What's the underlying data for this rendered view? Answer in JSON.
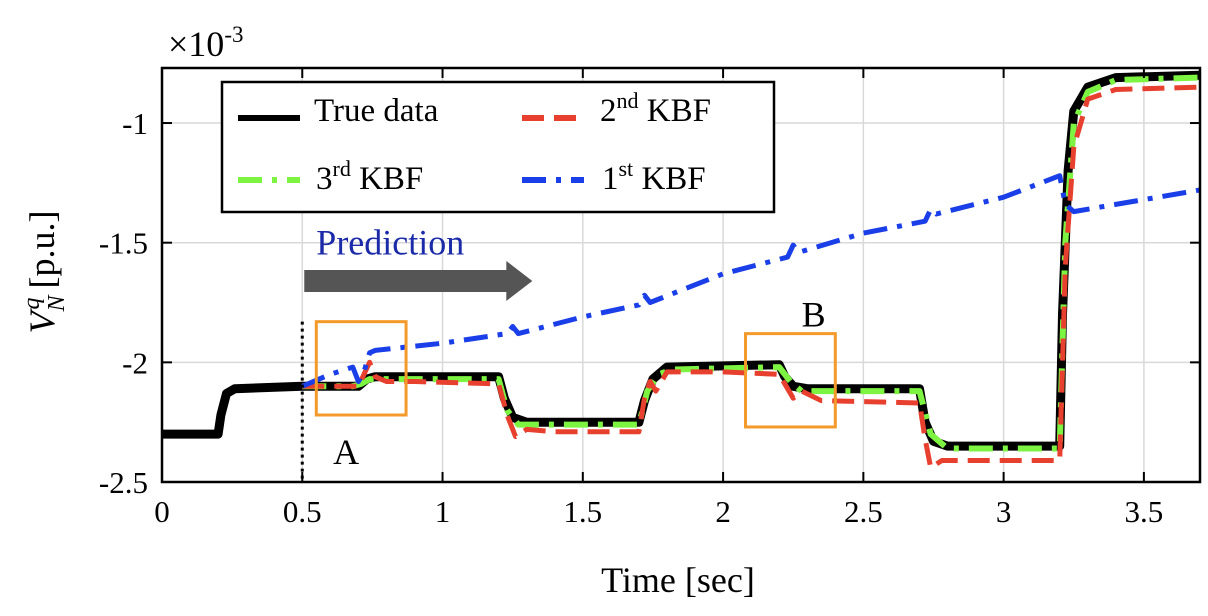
{
  "chart_data": {
    "type": "line",
    "xlabel": "Time [sec]",
    "ylabel": {
      "main": "V",
      "sup": "q",
      "sub": "N",
      "unit": " [p.u.]"
    },
    "y_multiplier": {
      "base": "×10",
      "exp": "-3"
    },
    "xlim": [
      0,
      3.7
    ],
    "ylim": [
      -2.5,
      -0.77
    ],
    "grid": true,
    "legend_position": "top-left",
    "xticks": [
      0,
      0.5,
      1,
      1.5,
      2,
      2.5,
      3,
      3.5
    ],
    "xtick_labels": [
      "0",
      "0.5",
      "1",
      "1.5",
      "2",
      "2.5",
      "3",
      "3.5"
    ],
    "yticks": [
      -2.5,
      -2,
      -1.5,
      -1
    ],
    "ytick_labels": [
      "-2.5",
      "-2",
      "-1.5",
      "-1"
    ],
    "series": [
      {
        "key": "true",
        "name": {
          "base": "True data",
          "sup": "",
          "suffix": ""
        },
        "color": "#000000",
        "style": "solid",
        "points": [
          [
            0,
            -2.3
          ],
          [
            0.2,
            -2.3
          ],
          [
            0.21,
            -2.22
          ],
          [
            0.23,
            -2.13
          ],
          [
            0.26,
            -2.11
          ],
          [
            0.5,
            -2.1
          ],
          [
            0.7,
            -2.1
          ],
          [
            0.73,
            -2.07
          ],
          [
            0.76,
            -2.06
          ],
          [
            1.2,
            -2.06
          ],
          [
            1.22,
            -2.15
          ],
          [
            1.25,
            -2.23
          ],
          [
            1.3,
            -2.25
          ],
          [
            1.7,
            -2.25
          ],
          [
            1.72,
            -2.16
          ],
          [
            1.75,
            -2.07
          ],
          [
            1.8,
            -2.02
          ],
          [
            2.2,
            -2.01
          ],
          [
            2.22,
            -2.06
          ],
          [
            2.25,
            -2.1
          ],
          [
            2.3,
            -2.11
          ],
          [
            2.7,
            -2.11
          ],
          [
            2.72,
            -2.25
          ],
          [
            2.75,
            -2.33
          ],
          [
            2.8,
            -2.35
          ],
          [
            3.2,
            -2.35
          ],
          [
            3.21,
            -1.8
          ],
          [
            3.23,
            -1.2
          ],
          [
            3.25,
            -0.95
          ],
          [
            3.3,
            -0.85
          ],
          [
            3.4,
            -0.81
          ],
          [
            3.7,
            -0.8
          ]
        ]
      },
      {
        "key": "kbf3",
        "name": {
          "base": "3",
          "sup": "rd",
          "suffix": " KBF"
        },
        "color": "#7df442",
        "style": "dashdot",
        "points": [
          [
            0.5,
            -2.1
          ],
          [
            0.68,
            -2.1
          ],
          [
            0.71,
            -2.09
          ],
          [
            0.74,
            -2.07
          ],
          [
            0.77,
            -2.07
          ],
          [
            1.2,
            -2.07
          ],
          [
            1.23,
            -2.2
          ],
          [
            1.27,
            -2.26
          ],
          [
            1.3,
            -2.26
          ],
          [
            1.7,
            -2.26
          ],
          [
            1.73,
            -2.12
          ],
          [
            1.77,
            -2.05
          ],
          [
            1.82,
            -2.03
          ],
          [
            2.2,
            -2.02
          ],
          [
            2.24,
            -2.08
          ],
          [
            2.28,
            -2.12
          ],
          [
            2.7,
            -2.12
          ],
          [
            2.74,
            -2.3
          ],
          [
            2.8,
            -2.36
          ],
          [
            3.2,
            -2.36
          ],
          [
            3.22,
            -1.5
          ],
          [
            3.25,
            -1.0
          ],
          [
            3.3,
            -0.87
          ],
          [
            3.4,
            -0.82
          ],
          [
            3.7,
            -0.81
          ]
        ]
      },
      {
        "key": "kbf2",
        "name": {
          "base": "2",
          "sup": "nd",
          "suffix": " KBF"
        },
        "color": "#e8402e",
        "style": "dashed",
        "points": [
          [
            0.5,
            -2.1
          ],
          [
            0.6,
            -2.1
          ],
          [
            0.7,
            -2.1
          ],
          [
            0.72,
            -2.05
          ],
          [
            0.74,
            -2.0
          ],
          [
            0.76,
            -2.06
          ],
          [
            0.8,
            -2.08
          ],
          [
            0.9,
            -2.08
          ],
          [
            1.2,
            -2.09
          ],
          [
            1.23,
            -2.22
          ],
          [
            1.26,
            -2.31
          ],
          [
            1.3,
            -2.28
          ],
          [
            1.4,
            -2.29
          ],
          [
            1.65,
            -2.29
          ],
          [
            1.7,
            -2.29
          ],
          [
            1.72,
            -2.15
          ],
          [
            1.74,
            -2.08
          ],
          [
            1.76,
            -2.12
          ],
          [
            1.8,
            -2.04
          ],
          [
            2.0,
            -2.04
          ],
          [
            2.2,
            -2.05
          ],
          [
            2.22,
            -2.09
          ],
          [
            2.25,
            -2.15
          ],
          [
            2.28,
            -2.12
          ],
          [
            2.35,
            -2.16
          ],
          [
            2.7,
            -2.17
          ],
          [
            2.72,
            -2.32
          ],
          [
            2.74,
            -2.44
          ],
          [
            2.78,
            -2.41
          ],
          [
            2.85,
            -2.41
          ],
          [
            3.2,
            -2.41
          ],
          [
            3.22,
            -1.6
          ],
          [
            3.25,
            -1.1
          ],
          [
            3.3,
            -0.9
          ],
          [
            3.4,
            -0.86
          ],
          [
            3.7,
            -0.85
          ]
        ]
      },
      {
        "key": "kbf1",
        "name": {
          "base": "1",
          "sup": "st",
          "suffix": " KBF"
        },
        "color": "#1a3fe8",
        "style": "dashdot",
        "points": [
          [
            0.5,
            -2.1
          ],
          [
            0.6,
            -2.05
          ],
          [
            0.68,
            -2.02
          ],
          [
            0.7,
            -2.08
          ],
          [
            0.72,
            -2.04
          ],
          [
            0.74,
            -1.96
          ],
          [
            0.76,
            -1.95
          ],
          [
            1.0,
            -1.92
          ],
          [
            1.23,
            -1.88
          ],
          [
            1.25,
            -1.85
          ],
          [
            1.27,
            -1.88
          ],
          [
            1.5,
            -1.81
          ],
          [
            1.7,
            -1.76
          ],
          [
            1.72,
            -1.72
          ],
          [
            1.74,
            -1.75
          ],
          [
            2.0,
            -1.63
          ],
          [
            2.23,
            -1.56
          ],
          [
            2.25,
            -1.51
          ],
          [
            2.27,
            -1.54
          ],
          [
            2.5,
            -1.46
          ],
          [
            2.72,
            -1.41
          ],
          [
            2.74,
            -1.36
          ],
          [
            2.76,
            -1.38
          ],
          [
            3.0,
            -1.31
          ],
          [
            3.2,
            -1.22
          ],
          [
            3.22,
            -1.34
          ],
          [
            3.25,
            -1.37
          ],
          [
            3.4,
            -1.34
          ],
          [
            3.7,
            -1.28
          ]
        ]
      }
    ],
    "annotations": {
      "prediction_label": "Prediction",
      "box_a_label": "A",
      "box_b_label": "B",
      "prediction_start_x": 0.5,
      "prediction_arrow_x": [
        0.5,
        1.32
      ],
      "box_a": {
        "x": [
          0.55,
          0.87
        ],
        "y": [
          -2.22,
          -1.83
        ]
      },
      "box_b": {
        "x": [
          2.08,
          2.4
        ],
        "y": [
          -2.27,
          -1.88
        ]
      }
    },
    "colors": {
      "box": "#f39a2a",
      "arrow": "#555555",
      "prediction_text": "#1a2aa8",
      "grid": "#d9d9d9"
    }
  }
}
